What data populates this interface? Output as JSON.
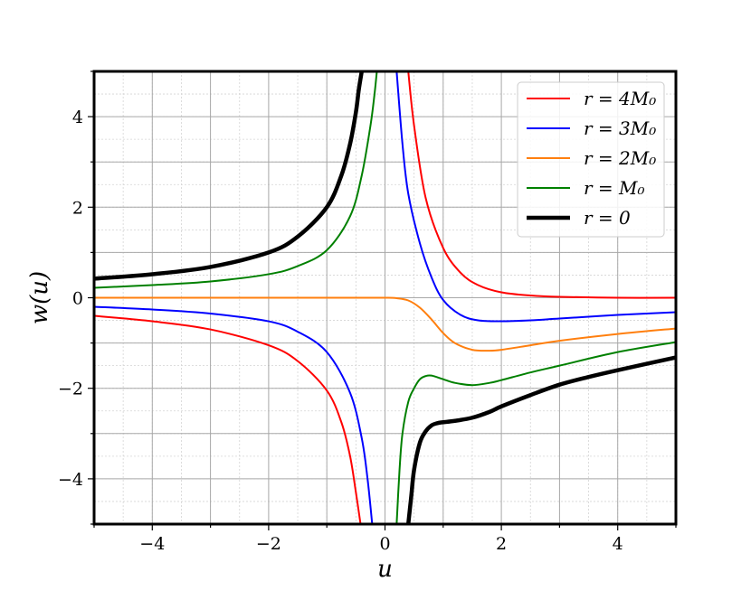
{
  "chart_data": {
    "type": "line",
    "xlabel": "u",
    "ylabel": "w(u)",
    "xlim": [
      -5,
      5
    ],
    "ylim": [
      -5,
      5
    ],
    "xticks": [
      -4,
      -2,
      0,
      2,
      4
    ],
    "yticks": [
      -4,
      -2,
      0,
      2,
      4
    ],
    "xtick_labels": [
      "−4",
      "−2",
      "0",
      "2",
      "4"
    ],
    "ytick_labels": [
      "−4",
      "−2",
      "0",
      "2",
      "4"
    ],
    "grid": "major and minor",
    "legend_position": "upper right",
    "series": [
      {
        "name": "r = 4M₀",
        "color": "#ff0000",
        "width": 2,
        "segments": [
          {
            "x": [
              -5,
              -4,
              -3,
              -2,
              -1.5,
              -1,
              -0.75,
              -0.6,
              -0.5,
              -0.42
            ],
            "y": [
              -0.4,
              -0.52,
              -0.7,
              -1.05,
              -1.4,
              -2.05,
              -2.75,
              -3.5,
              -4.3,
              -5.0
            ]
          },
          {
            "x": [
              0.4,
              0.5,
              0.7,
              1.0,
              1.3,
              1.6,
              2.0,
              2.5,
              3.0,
              4.0,
              5.0
            ],
            "y": [
              5.0,
              3.8,
              2.2,
              1.1,
              0.55,
              0.28,
              0.12,
              0.05,
              0.02,
              0.0,
              0.0
            ]
          }
        ]
      },
      {
        "name": "r = 3M₀",
        "color": "#0000ff",
        "width": 2,
        "segments": [
          {
            "x": [
              -5,
              -4,
              -3,
              -2,
              -1.5,
              -1,
              -0.6,
              -0.4,
              -0.3,
              -0.22
            ],
            "y": [
              -0.2,
              -0.26,
              -0.35,
              -0.52,
              -0.75,
              -1.2,
              -2.1,
              -3.1,
              -4.0,
              -5.0
            ]
          },
          {
            "x": [
              0.2,
              0.3,
              0.4,
              0.6,
              0.8,
              1.0,
              1.3,
              1.6,
              2.0,
              2.5,
              3.0,
              4.0,
              5.0
            ],
            "y": [
              5.0,
              3.4,
              2.3,
              1.2,
              0.45,
              -0.05,
              -0.38,
              -0.5,
              -0.52,
              -0.5,
              -0.46,
              -0.38,
              -0.32
            ]
          }
        ]
      },
      {
        "name": "r = 2M₀",
        "color": "#ff7f0e",
        "width": 2,
        "segments": [
          {
            "x": [
              -5,
              -3,
              -1,
              0,
              0.2,
              0.4,
              0.6,
              0.8,
              1.0,
              1.2,
              1.5,
              1.8,
              2.0,
              2.5,
              3.0,
              4.0,
              5.0
            ],
            "y": [
              0,
              0,
              0,
              0,
              -0.01,
              -0.06,
              -0.22,
              -0.48,
              -0.78,
              -1.0,
              -1.15,
              -1.17,
              -1.15,
              -1.05,
              -0.95,
              -0.8,
              -0.68
            ]
          }
        ]
      },
      {
        "name": "r = M₀",
        "color": "#008000",
        "width": 2,
        "segments": [
          {
            "x": [
              -5,
              -4,
              -3,
              -2,
              -1.5,
              -1,
              -0.6,
              -0.4,
              -0.25,
              -0.18,
              -0.14
            ],
            "y": [
              0.22,
              0.28,
              0.36,
              0.52,
              0.7,
              1.05,
              1.8,
              2.7,
              3.8,
              4.5,
              5.0
            ]
          },
          {
            "x": [
              0.2,
              0.25,
              0.3,
              0.4,
              0.5,
              0.6,
              0.7,
              0.8,
              1.0,
              1.2,
              1.5,
              1.8,
              2.0,
              2.5,
              3.0,
              4.0,
              5.0
            ],
            "y": [
              -5.0,
              -3.8,
              -3.0,
              -2.3,
              -2.0,
              -1.8,
              -1.73,
              -1.72,
              -1.8,
              -1.88,
              -1.93,
              -1.88,
              -1.82,
              -1.65,
              -1.5,
              -1.2,
              -0.98
            ]
          }
        ]
      },
      {
        "name": "r = 0",
        "color": "#000000",
        "width": 4.5,
        "segments": [
          {
            "x": [
              -5,
              -4,
              -3,
              -2,
              -1.5,
              -1,
              -0.75,
              -0.6,
              -0.5,
              -0.45,
              -0.4
            ],
            "y": [
              0.42,
              0.52,
              0.68,
              1.0,
              1.35,
              2.0,
              2.7,
              3.4,
              4.1,
              4.6,
              5.0
            ]
          },
          {
            "x": [
              0.4,
              0.45,
              0.5,
              0.6,
              0.7,
              0.8,
              0.9,
              1.0,
              1.2,
              1.5,
              1.8,
              2.0,
              2.5,
              3.0,
              3.5,
              4.0,
              5.0
            ],
            "y": [
              -5.0,
              -4.4,
              -3.8,
              -3.2,
              -2.95,
              -2.82,
              -2.77,
              -2.75,
              -2.72,
              -2.65,
              -2.52,
              -2.4,
              -2.15,
              -1.92,
              -1.75,
              -1.6,
              -1.32
            ]
          }
        ]
      }
    ]
  }
}
